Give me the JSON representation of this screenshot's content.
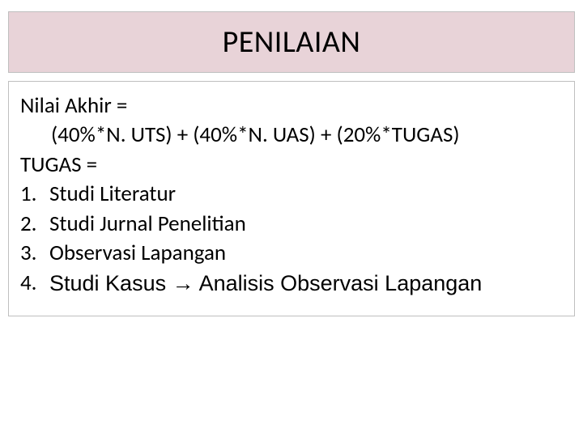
{
  "title": "PENILAIAN",
  "content": {
    "line1": "Nilai Akhir =",
    "formula": "(40%*N. UTS) + (40%*N. UAS) + (20%*TUGAS)",
    "line3": "TUGAS =",
    "items": [
      {
        "num": "1.",
        "text": "Studi Literatur"
      },
      {
        "num": "2.",
        "text": "Studi Jurnal Penelitian"
      },
      {
        "num": "3.",
        "text": "Observasi Lapangan"
      },
      {
        "num": "4.",
        "text": "Studi Kasus → Analisis Observasi Lapangan"
      }
    ]
  },
  "styling": {
    "title_bg": "#e8d3d8",
    "border_color": "#bfbfbf",
    "title_fontsize": 38,
    "body_fontsize": 27,
    "text_color": "#000000",
    "background_color": "#ffffff"
  }
}
